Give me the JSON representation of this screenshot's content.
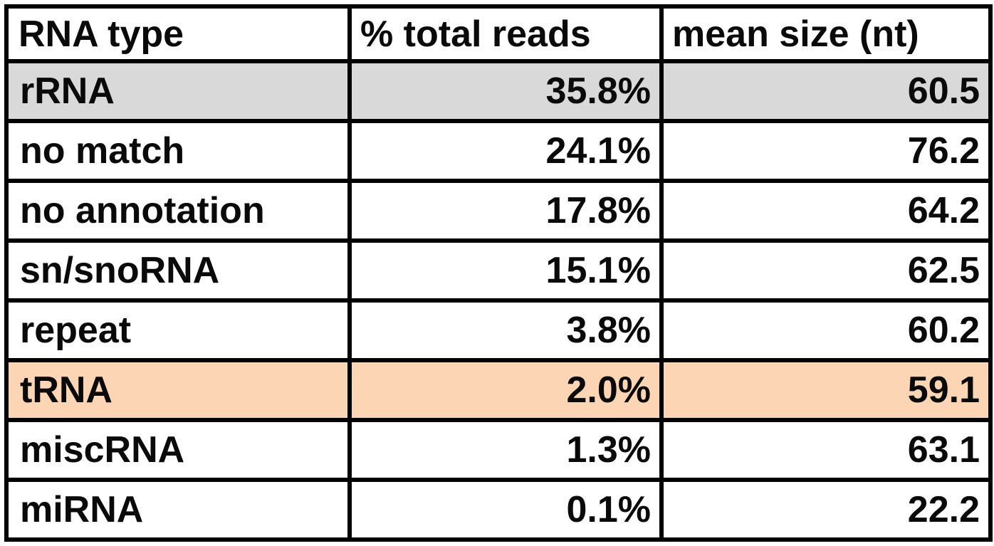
{
  "chart_data": {
    "type": "table",
    "columns": [
      "RNA type",
      "% total reads",
      "mean size (nt)"
    ],
    "rows": [
      {
        "type": "rRNA",
        "percent_total_reads": "35.8%",
        "mean_size_nt": "60.5",
        "highlight": "#d9d9d9"
      },
      {
        "type": "no match",
        "percent_total_reads": "24.1%",
        "mean_size_nt": "76.2",
        "highlight": "#ffffff"
      },
      {
        "type": "no annotation",
        "percent_total_reads": "17.8%",
        "mean_size_nt": "64.2",
        "highlight": "#ffffff"
      },
      {
        "type": "sn/snoRNA",
        "percent_total_reads": "15.1%",
        "mean_size_nt": "62.5",
        "highlight": "#ffffff"
      },
      {
        "type": "repeat",
        "percent_total_reads": "3.8%",
        "mean_size_nt": "60.2",
        "highlight": "#ffffff"
      },
      {
        "type": "tRNA",
        "percent_total_reads": "2.0%",
        "mean_size_nt": "59.1",
        "highlight": "#fcd5b4"
      },
      {
        "type": "miscRNA",
        "percent_total_reads": "1.3%",
        "mean_size_nt": "63.1",
        "highlight": "#ffffff"
      },
      {
        "type": "miRNA",
        "percent_total_reads": "0.1%",
        "mean_size_nt": "22.2",
        "highlight": "#ffffff"
      }
    ]
  }
}
